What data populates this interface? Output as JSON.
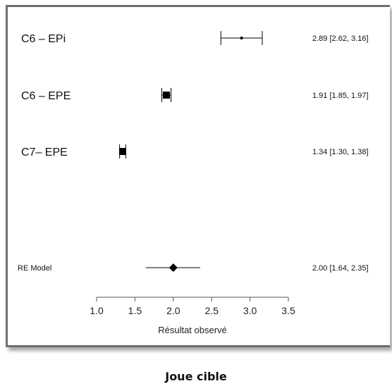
{
  "caption": "Joue cible",
  "chart_data": {
    "type": "forest",
    "xlabel": "Résultat observé",
    "xlim": [
      1.0,
      3.5
    ],
    "xticks": [
      "1.0",
      "1.5",
      "2.0",
      "2.5",
      "3.0",
      "3.5"
    ],
    "studies": [
      {
        "label": "C6 – EPi",
        "estimate": 2.89,
        "ci_low": 2.62,
        "ci_high": 3.16,
        "ci_text": "2.89 [2.62, 3.16]",
        "weight": 0.2
      },
      {
        "label": "C6 – EPE",
        "estimate": 1.91,
        "ci_low": 1.85,
        "ci_high": 1.97,
        "ci_text": "1.91 [1.85, 1.97]",
        "weight": 1.0
      },
      {
        "label": "C7– EPE",
        "estimate": 1.34,
        "ci_low": 1.3,
        "ci_high": 1.38,
        "ci_text": "1.34 [1.30, 1.38]",
        "weight": 1.0
      }
    ],
    "summary": {
      "label": "RE Model",
      "estimate": 2.0,
      "ci_low": 1.64,
      "ci_high": 2.35,
      "ci_text": "2.00 [1.64, 2.35]"
    },
    "colors": {
      "marker": "#000000",
      "line": "#000000"
    }
  }
}
